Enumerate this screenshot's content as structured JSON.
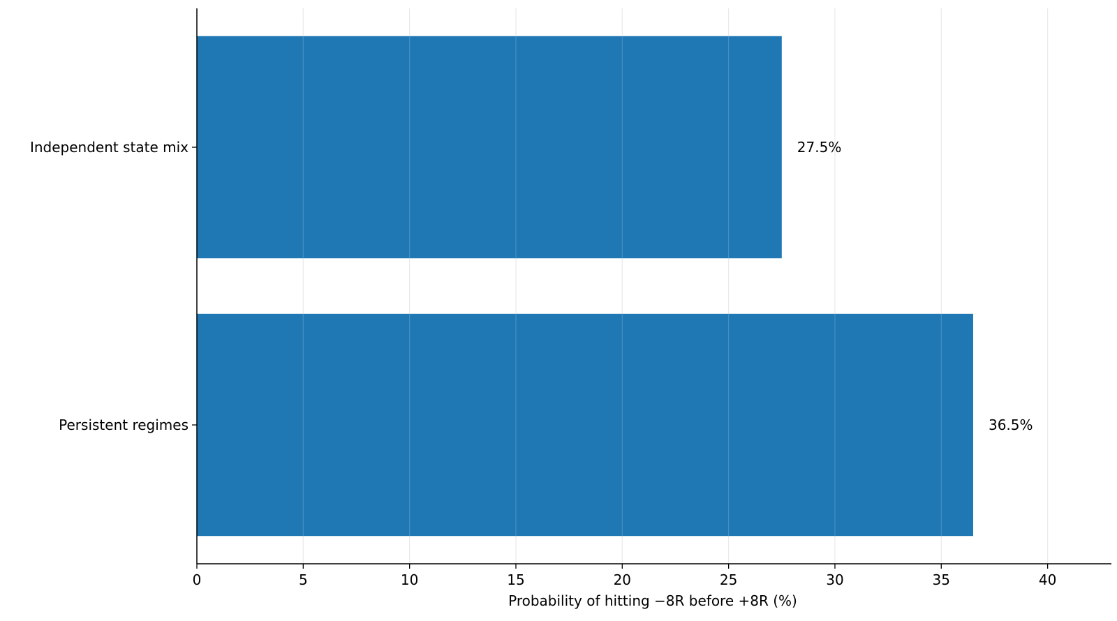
{
  "chart_data": {
    "type": "bar",
    "orientation": "horizontal",
    "categories": [
      "Independent state mix",
      "Persistent regimes"
    ],
    "values": [
      27.5,
      36.5
    ],
    "data_labels": [
      "27.5%",
      "36.5%"
    ],
    "title": "",
    "xlabel": "Probability of hitting −8R before +8R (%)",
    "ylabel": "",
    "xlim": [
      0,
      43
    ],
    "xticks": [
      0,
      5,
      10,
      15,
      20,
      25,
      30,
      35,
      40
    ],
    "grid": "vertical",
    "legend": "none",
    "bar_color": "#1f77b4",
    "grid_color": "#e6e6e6"
  }
}
